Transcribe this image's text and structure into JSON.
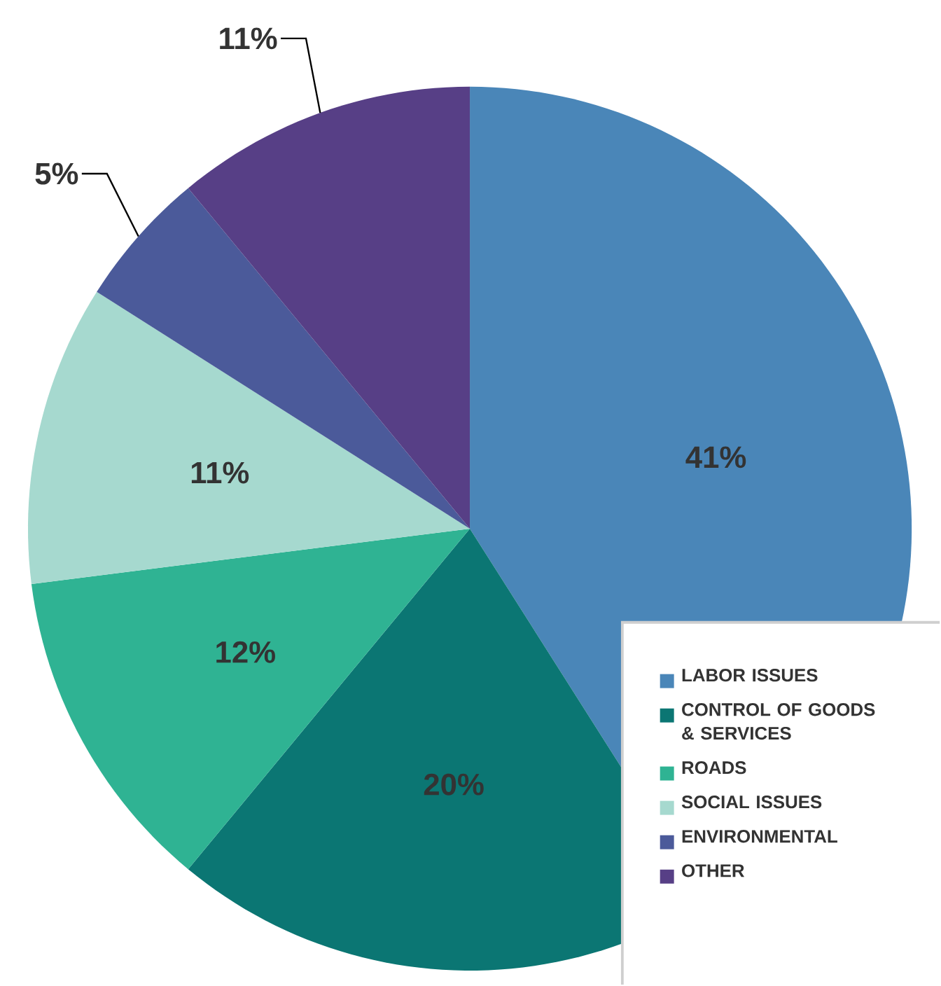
{
  "chart_data": {
    "type": "pie",
    "categories": [
      "LABOR ISSUES",
      "CONTROL OF GOODS & SERVICES",
      "ROADS",
      "SOCIAL ISSUES",
      "ENVIRONMENTAL",
      "OTHER"
    ],
    "values": [
      41,
      20,
      12,
      11,
      5,
      11
    ],
    "colors": [
      "#4a86b8",
      "#0b7673",
      "#2fb393",
      "#a6d9cf",
      "#4b5a9a",
      "#573f86"
    ],
    "value_labels": [
      "41%",
      "20%",
      "12%",
      "11%",
      "5%",
      "11%"
    ],
    "legend": "bottom right"
  }
}
